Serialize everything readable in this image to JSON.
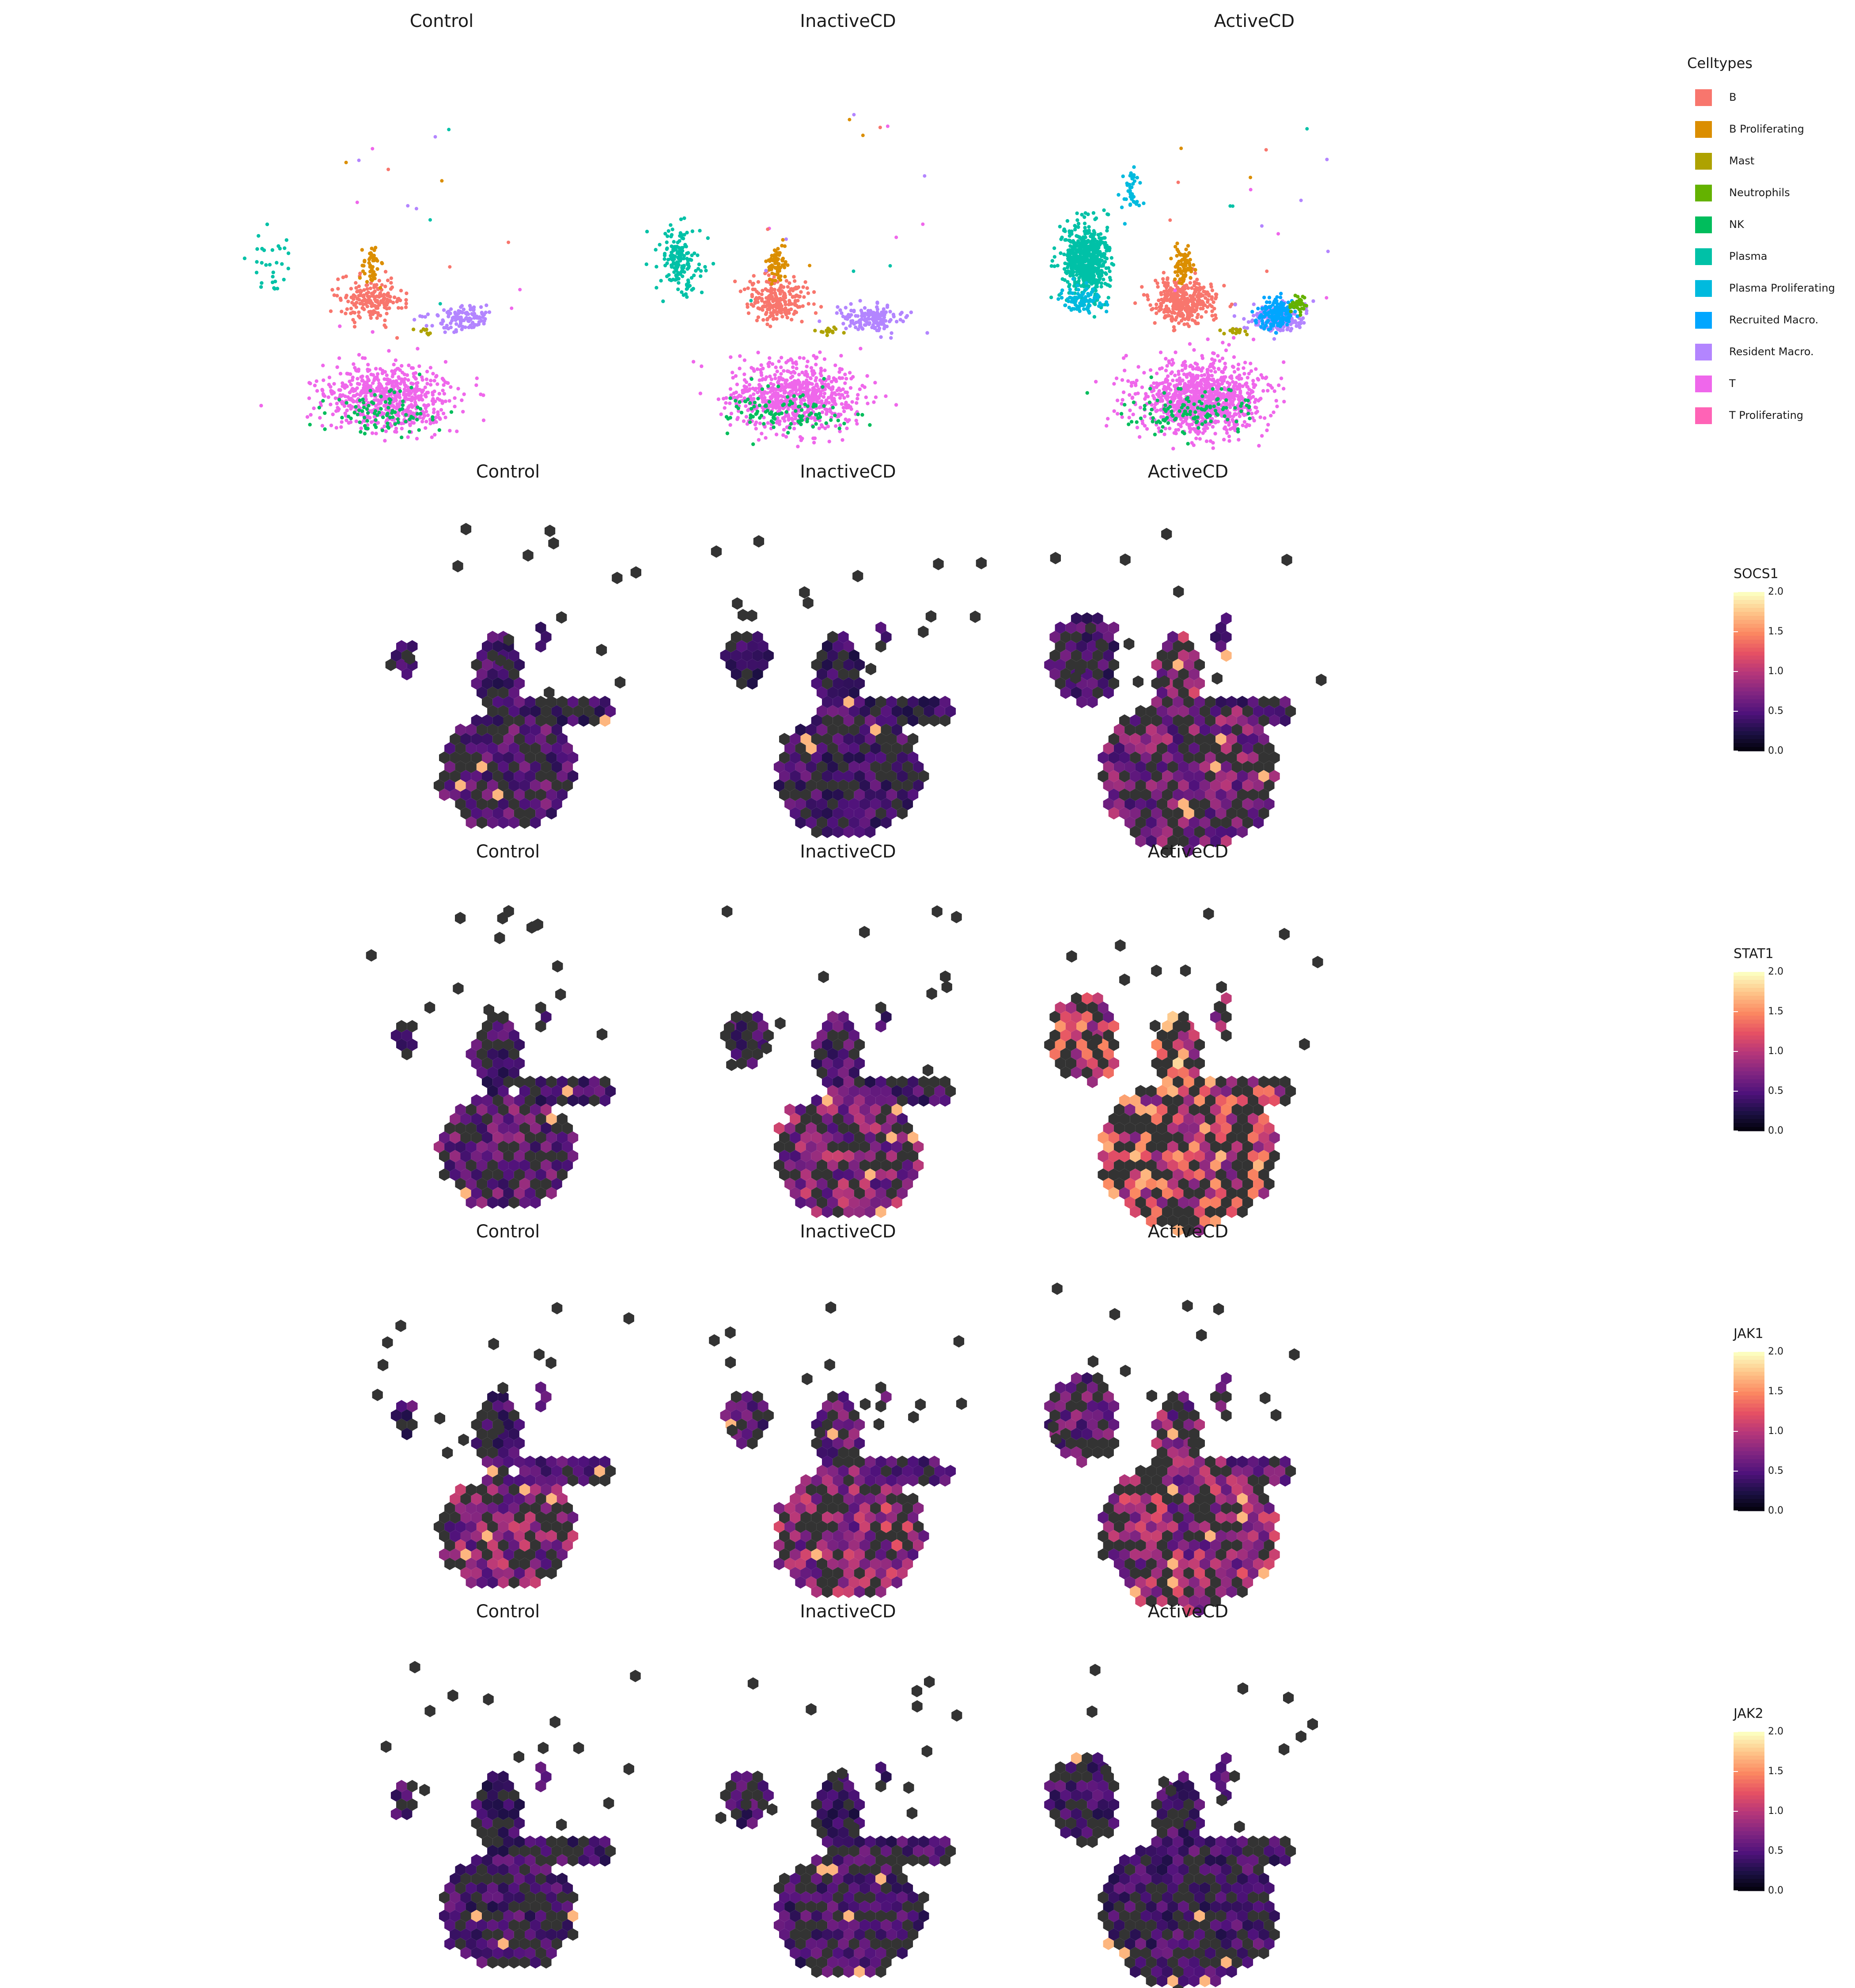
{
  "chart_data": {
    "type": "scatter",
    "conditions": [
      "Control",
      "InactiveCD",
      "ActiveCD"
    ],
    "celltype_legend": {
      "title": "Celltypes",
      "items": [
        {
          "label": "B",
          "color": "#F8766D"
        },
        {
          "label": "B Proliferating",
          "color": "#DB8E00"
        },
        {
          "label": "Mast",
          "color": "#AEA200"
        },
        {
          "label": "Neutrophils",
          "color": "#64B200"
        },
        {
          "label": "NK",
          "color": "#00BD5C"
        },
        {
          "label": "Plasma",
          "color": "#00C1A7"
        },
        {
          "label": "Plasma Proliferating",
          "color": "#00BADE"
        },
        {
          "label": "Recruited Macro.",
          "color": "#00A6FF"
        },
        {
          "label": "Resident Macro.",
          "color": "#B385FF"
        },
        {
          "label": "T",
          "color": "#EF67EB"
        },
        {
          "label": "T Proliferating",
          "color": "#FF63B6"
        }
      ]
    },
    "gene_rows": [
      {
        "gene": "SOCS1",
        "level": [
          [
            0.35,
            0.3,
            0.25
          ],
          [
            0.3,
            0.25,
            0.25
          ],
          [
            0.45,
            0.55,
            0.3
          ]
        ]
      },
      {
        "gene": "STAT1",
        "level": [
          [
            0.4,
            0.3,
            0.3
          ],
          [
            0.5,
            0.35,
            0.3
          ],
          [
            0.75,
            0.8,
            0.7
          ]
        ]
      },
      {
        "gene": "JAK1",
        "level": [
          [
            0.5,
            0.3,
            0.3
          ],
          [
            0.55,
            0.4,
            0.35
          ],
          [
            0.55,
            0.5,
            0.4
          ]
        ]
      },
      {
        "gene": "JAK2",
        "level": [
          [
            0.3,
            0.25,
            0.3
          ],
          [
            0.3,
            0.25,
            0.3
          ],
          [
            0.3,
            0.3,
            0.3
          ]
        ]
      }
    ],
    "colorbar": {
      "range": [
        0,
        2
      ],
      "ticks": [
        "0.0",
        "0.5",
        "1.0",
        "1.5",
        "2.0"
      ],
      "palette": "magma"
    },
    "background": "#ffffff",
    "grid": false,
    "legend_placement": "right"
  }
}
